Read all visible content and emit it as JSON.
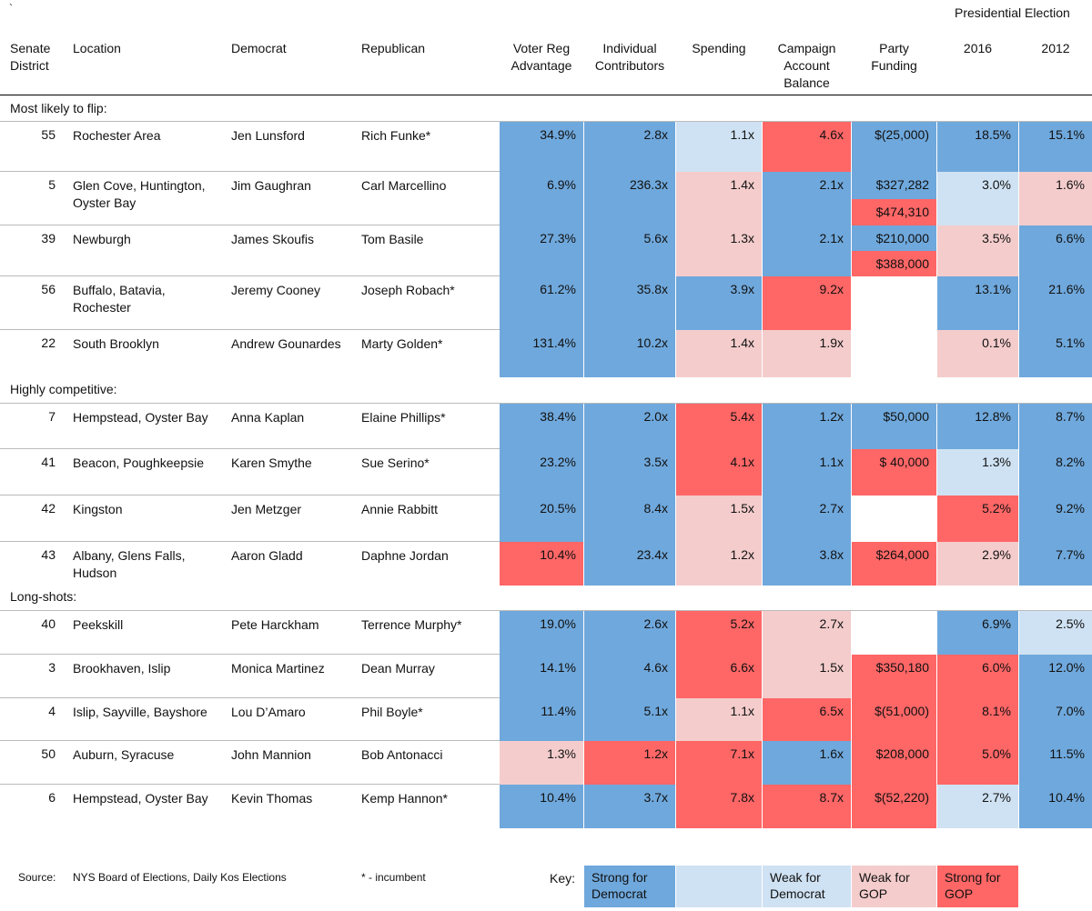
{
  "top_mark": "`",
  "header": {
    "presidential": "Presidential Election",
    "columns": {
      "district": "Senate\nDistrict",
      "location": "Location",
      "democrat": "Democrat",
      "republican": "Republican",
      "voter": "Voter Reg\nAdvantage",
      "contrib": "Individual\nContributors",
      "spending": "Spending",
      "balance": "Campaign\nAccount\nBalance",
      "party": "Party\nFunding",
      "y2016": "2016",
      "y2012": "2012"
    }
  },
  "colors": {
    "strong_dem": "#6fa8dc",
    "weak_dem": "#cfe2f3",
    "weak_gop": "#f4cccc",
    "strong_gop": "#ff6666",
    "none": "#ffffff"
  },
  "sections": [
    {
      "label": "Most likely to flip:",
      "rows": [
        {
          "district": "55",
          "location": "Rochester Area",
          "democrat": "Jen Lunsford",
          "republican": "Rich Funke*",
          "voter": {
            "v": "34.9%",
            "c": "sd"
          },
          "contrib": {
            "v": "2.8x",
            "c": "sd"
          },
          "spending": {
            "v": "1.1x",
            "c": "wd"
          },
          "balance": {
            "v": "4.6x",
            "c": "sg"
          },
          "party": [
            {
              "v": "$(25,000)",
              "c": "sd"
            }
          ],
          "y2016": {
            "v": "18.5%",
            "c": "sd"
          },
          "y2012": {
            "v": "15.1%",
            "c": "sd"
          }
        },
        {
          "district": "5",
          "location": "Glen Cove, Huntington,\nOyster Bay",
          "democrat": "Jim Gaughran",
          "republican": "Carl Marcellino",
          "voter": {
            "v": "6.9%",
            "c": "sd"
          },
          "contrib": {
            "v": "236.3x",
            "c": "sd"
          },
          "spending": {
            "v": "1.4x",
            "c": "wg"
          },
          "balance": {
            "v": "2.1x",
            "c": "sd"
          },
          "party": [
            {
              "v": "$327,282",
              "c": "sd"
            },
            {
              "v": "$474,310",
              "c": "sg"
            }
          ],
          "y2016": {
            "v": "3.0%",
            "c": "wd"
          },
          "y2012": {
            "v": "1.6%",
            "c": "wg"
          }
        },
        {
          "district": "39",
          "location": "Newburgh",
          "democrat": "James Skoufis",
          "republican": "Tom Basile",
          "voter": {
            "v": "27.3%",
            "c": "sd"
          },
          "contrib": {
            "v": "5.6x",
            "c": "sd"
          },
          "spending": {
            "v": "1.3x",
            "c": "wg"
          },
          "balance": {
            "v": "2.1x",
            "c": "sd"
          },
          "party": [
            {
              "v": "$210,000",
              "c": "sd"
            },
            {
              "v": "$388,000",
              "c": "sg"
            }
          ],
          "y2016": {
            "v": "3.5%",
            "c": "wg"
          },
          "y2012": {
            "v": "6.6%",
            "c": "sd"
          }
        },
        {
          "district": "56",
          "location": "Buffalo, Batavia,\nRochester",
          "democrat": "Jeremy Cooney",
          "republican": "Joseph Robach*",
          "voter": {
            "v": "61.2%",
            "c": "sd"
          },
          "contrib": {
            "v": "35.8x",
            "c": "sd"
          },
          "spending": {
            "v": "3.9x",
            "c": "sd"
          },
          "balance": {
            "v": "9.2x",
            "c": "sg"
          },
          "party": [
            {
              "v": "",
              "c": "none"
            }
          ],
          "y2016": {
            "v": "13.1%",
            "c": "sd"
          },
          "y2012": {
            "v": "21.6%",
            "c": "sd"
          }
        },
        {
          "district": "22",
          "location": "South Brooklyn",
          "democrat": "Andrew Gounardes",
          "republican": "Marty Golden*",
          "voter": {
            "v": "131.4%",
            "c": "sd"
          },
          "contrib": {
            "v": "10.2x",
            "c": "sd"
          },
          "spending": {
            "v": "1.4x",
            "c": "wg"
          },
          "balance": {
            "v": "1.9x",
            "c": "wg"
          },
          "party": [
            {
              "v": "",
              "c": "none"
            }
          ],
          "y2016": {
            "v": "0.1%",
            "c": "wg"
          },
          "y2012": {
            "v": "5.1%",
            "c": "sd"
          }
        }
      ]
    },
    {
      "label": "Highly competitive:",
      "rows": [
        {
          "district": "7",
          "location": "Hempstead, Oyster Bay",
          "democrat": "Anna Kaplan",
          "republican": "Elaine Phillips*",
          "voter": {
            "v": "38.4%",
            "c": "sd"
          },
          "contrib": {
            "v": "2.0x",
            "c": "sd"
          },
          "spending": {
            "v": "5.4x",
            "c": "sg"
          },
          "balance": {
            "v": "1.2x",
            "c": "sd"
          },
          "party": [
            {
              "v": "$50,000",
              "c": "sd"
            }
          ],
          "y2016": {
            "v": "12.8%",
            "c": "sd"
          },
          "y2012": {
            "v": "8.7%",
            "c": "sd"
          }
        },
        {
          "district": "41",
          "location": "Beacon, Poughkeepsie",
          "democrat": "Karen Smythe",
          "republican": "Sue Serino*",
          "voter": {
            "v": "23.2%",
            "c": "sd"
          },
          "contrib": {
            "v": "3.5x",
            "c": "sd"
          },
          "spending": {
            "v": "4.1x",
            "c": "sg"
          },
          "balance": {
            "v": "1.1x",
            "c": "sd"
          },
          "party": [
            {
              "v": "$ 40,000",
              "c": "sg"
            }
          ],
          "y2016": {
            "v": "1.3%",
            "c": "wd"
          },
          "y2012": {
            "v": "8.2%",
            "c": "sd"
          }
        },
        {
          "district": "42",
          "location": "Kingston",
          "democrat": "Jen Metzger",
          "republican": "Annie Rabbitt",
          "voter": {
            "v": "20.5%",
            "c": "sd"
          },
          "contrib": {
            "v": "8.4x",
            "c": "sd"
          },
          "spending": {
            "v": "1.5x",
            "c": "wg"
          },
          "balance": {
            "v": "2.7x",
            "c": "sd"
          },
          "party": [
            {
              "v": "",
              "c": "none"
            }
          ],
          "y2016": {
            "v": "5.2%",
            "c": "sg"
          },
          "y2012": {
            "v": "9.2%",
            "c": "sd"
          }
        },
        {
          "district": "43",
          "location": "Albany, Glens Falls,\nHudson",
          "democrat": "Aaron Gladd",
          "republican": "Daphne Jordan",
          "voter": {
            "v": "10.4%",
            "c": "sg"
          },
          "contrib": {
            "v": "23.4x",
            "c": "sd"
          },
          "spending": {
            "v": "1.2x",
            "c": "wg"
          },
          "balance": {
            "v": "3.8x",
            "c": "sd"
          },
          "party": [
            {
              "v": "$264,000",
              "c": "sg"
            }
          ],
          "y2016": {
            "v": "2.9%",
            "c": "wg"
          },
          "y2012": {
            "v": "7.7%",
            "c": "sd"
          }
        }
      ]
    },
    {
      "label": "Long-shots:",
      "rows": [
        {
          "district": "40",
          "location": "Peekskill",
          "democrat": "Pete Harckham",
          "republican": "Terrence Murphy*",
          "voter": {
            "v": "19.0%",
            "c": "sd"
          },
          "contrib": {
            "v": "2.6x",
            "c": "sd"
          },
          "spending": {
            "v": "5.2x",
            "c": "sg"
          },
          "balance": {
            "v": "2.7x",
            "c": "wg"
          },
          "party": [
            {
              "v": "",
              "c": "none"
            }
          ],
          "y2016": {
            "v": "6.9%",
            "c": "sd"
          },
          "y2012": {
            "v": "2.5%",
            "c": "wd"
          }
        },
        {
          "district": "3",
          "location": "Brookhaven, Islip",
          "democrat": "Monica Martinez",
          "republican": "Dean Murray",
          "voter": {
            "v": "14.1%",
            "c": "sd"
          },
          "contrib": {
            "v": "4.6x",
            "c": "sd"
          },
          "spending": {
            "v": "6.6x",
            "c": "sg"
          },
          "balance": {
            "v": "1.5x",
            "c": "wg"
          },
          "party": [
            {
              "v": "$350,180",
              "c": "sg"
            }
          ],
          "y2016": {
            "v": "6.0%",
            "c": "sg"
          },
          "y2012": {
            "v": "12.0%",
            "c": "sd"
          }
        },
        {
          "district": "4",
          "location": "Islip, Sayville, Bayshore",
          "democrat": "Lou D’Amaro",
          "republican": "Phil Boyle*",
          "voter": {
            "v": "11.4%",
            "c": "sd"
          },
          "contrib": {
            "v": "5.1x",
            "c": "sd"
          },
          "spending": {
            "v": "1.1x",
            "c": "wg"
          },
          "balance": {
            "v": "6.5x",
            "c": "sg"
          },
          "party": [
            {
              "v": "$(51,000)",
              "c": "sg"
            }
          ],
          "y2016": {
            "v": "8.1%",
            "c": "sg"
          },
          "y2012": {
            "v": "7.0%",
            "c": "sd"
          }
        },
        {
          "district": "50",
          "location": "Auburn, Syracuse",
          "democrat": "John Mannion",
          "republican": "Bob Antonacci",
          "voter": {
            "v": "1.3%",
            "c": "wg"
          },
          "contrib": {
            "v": "1.2x",
            "c": "sg"
          },
          "spending": {
            "v": "7.1x",
            "c": "sg"
          },
          "balance": {
            "v": "1.6x",
            "c": "sd"
          },
          "party": [
            {
              "v": "$208,000",
              "c": "sg"
            }
          ],
          "y2016": {
            "v": "5.0%",
            "c": "sg"
          },
          "y2012": {
            "v": "11.5%",
            "c": "sd"
          }
        },
        {
          "district": "6",
          "location": "Hempstead, Oyster Bay",
          "democrat": "Kevin Thomas",
          "republican": "Kemp Hannon*",
          "voter": {
            "v": "10.4%",
            "c": "sd"
          },
          "contrib": {
            "v": "3.7x",
            "c": "sd"
          },
          "spending": {
            "v": "7.8x",
            "c": "sg"
          },
          "balance": {
            "v": "8.7x",
            "c": "sg"
          },
          "party": [
            {
              "v": "$(52,220)",
              "c": "sg"
            }
          ],
          "y2016": {
            "v": "2.7%",
            "c": "wd"
          },
          "y2012": {
            "v": "10.4%",
            "c": "sd"
          }
        }
      ]
    }
  ],
  "footer": {
    "source_label": "Source:",
    "source_text": "NYS Board of Elections, Daily Kos Elections",
    "incumbent_note": "* - incumbent",
    "key_label": "Key:",
    "key": [
      {
        "label": "Strong for\nDemocrat",
        "c": "sd"
      },
      {
        "label": "",
        "c": "wd"
      },
      {
        "label": "Weak for\nDemocrat",
        "c": "wd"
      },
      {
        "label": "Weak for\nGOP",
        "c": "wg"
      },
      {
        "label": "Strong for\nGOP",
        "c": "sg"
      }
    ]
  }
}
